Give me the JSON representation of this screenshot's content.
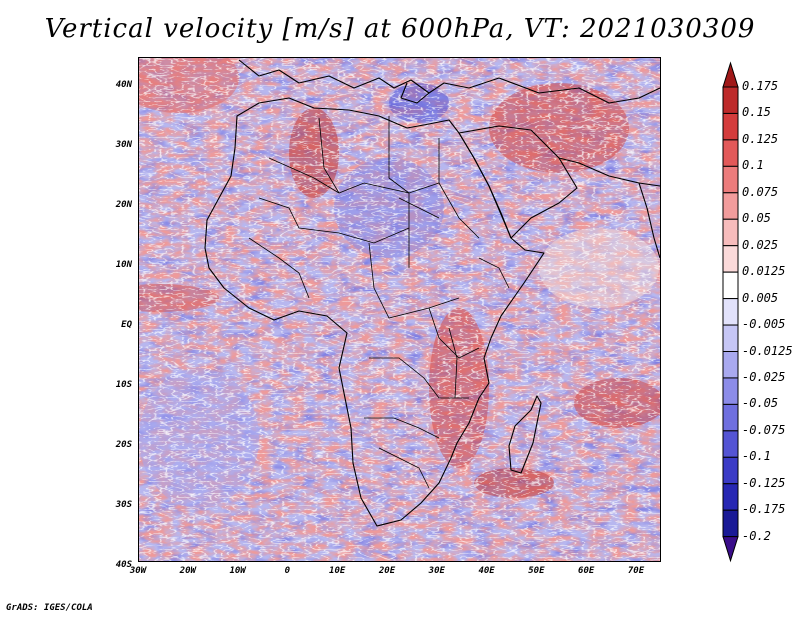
{
  "title": "Vertical velocity [m/s] at 600hPa, VT: 2021030309",
  "credit": "GrADS: IGES/COLA",
  "map": {
    "lat_ticks": [
      "40N",
      "30N",
      "20N",
      "10N",
      "EQ",
      "10S",
      "20S",
      "30S",
      "40S"
    ],
    "lon_ticks": [
      "30W",
      "20W",
      "10W",
      "0",
      "10E",
      "20E",
      "30E",
      "40E",
      "50E",
      "60E",
      "70E"
    ],
    "extent": {
      "lon": [
        -30,
        75
      ],
      "lat": [
        -40,
        45
      ]
    }
  },
  "colorbar": {
    "levels": [
      "0.175",
      "0.15",
      "0.125",
      "0.1",
      "0.075",
      "0.05",
      "0.025",
      "0.0125",
      "0.005",
      "-0.005",
      "-0.0125",
      "-0.025",
      "-0.05",
      "-0.075",
      "-0.1",
      "-0.125",
      "-0.175",
      "-0.2"
    ],
    "colors": [
      "#a01818",
      "#bd2a2a",
      "#d43c3c",
      "#e25959",
      "#ec7c7c",
      "#f29c9c",
      "#f7bcbc",
      "#fbdada",
      "#ffffff",
      "#e2e2fb",
      "#c6c6f5",
      "#a9a9ef",
      "#8c8ce8",
      "#6f6fdf",
      "#5454d4",
      "#3b3bc6",
      "#2727b3",
      "#1a1a96",
      "#3a0d8a"
    ]
  }
}
